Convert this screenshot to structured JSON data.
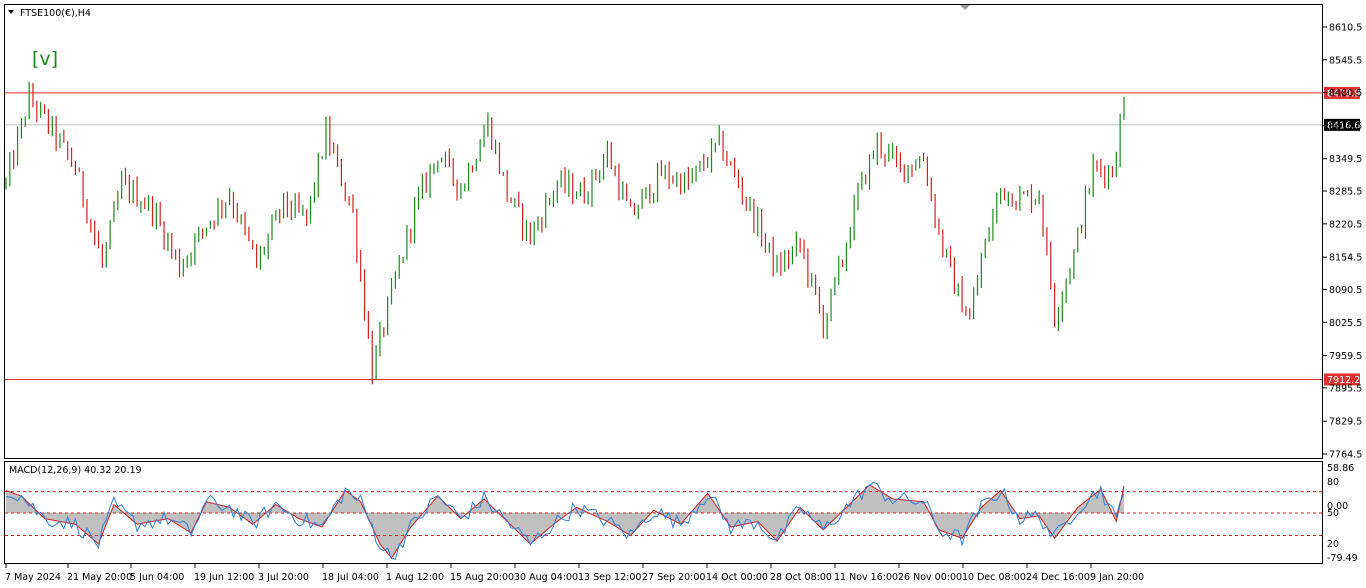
{
  "header": {
    "symbol_label": "FTSE100(€),H4",
    "wave_label": "[v]"
  },
  "colors": {
    "bull": "#1a8a1a",
    "bear": "#d42020",
    "level_line": "#e03030",
    "wave_label": "#1a8a1a",
    "macd_line": "#2f7fd8",
    "signal_line": "#d02020",
    "histogram": "#c0c0c0",
    "level_dots": "#d02020"
  },
  "chart_data": [
    {
      "type": "candlestick",
      "title": "FTSE100(€),H4",
      "ylim": [
        7764.5,
        8610.5
      ],
      "yticks": [
        "8610.5",
        "8545.5",
        "8480.5",
        "8415.5",
        "8349.5",
        "8285.5",
        "8220.5",
        "8154.5",
        "8090.5",
        "8025.5",
        "7959.5",
        "7895.5",
        "7829.5",
        "7764.5"
      ],
      "xticks": [
        "7 May 2024",
        "21 May 20:00",
        "5 Jun 04:00",
        "19 Jun 12:00",
        "3 Jul 20:00",
        "18 Jul 04:00",
        "1 Aug 12:00",
        "15 Aug 20:00",
        "30 Aug 04:00",
        "13 Sep 12:00",
        "27 Sep 20:00",
        "14 Oct 00:00",
        "28 Oct 08:00",
        "11 Nov 16:00",
        "26 Nov 00:00",
        "10 Dec 08:00",
        "24 Dec 16:00",
        "9 Jan 20:00"
      ],
      "horizontal_levels": [
        {
          "value": 8479.9,
          "label": "8479.9",
          "color": "#e03030"
        },
        {
          "value": 7912.2,
          "label": "7912.2",
          "color": "#e03030"
        }
      ],
      "current_price": {
        "value": 8416.6,
        "label": "8416.6"
      },
      "anchors": [
        [
          0,
          8300
        ],
        [
          3,
          8385
        ],
        [
          6,
          8470
        ],
        [
          12,
          8405
        ],
        [
          18,
          8330
        ],
        [
          25,
          8140
        ],
        [
          30,
          8300
        ],
        [
          38,
          8250
        ],
        [
          45,
          8135
        ],
        [
          52,
          8220
        ],
        [
          58,
          8280
        ],
        [
          65,
          8140
        ],
        [
          72,
          8260
        ],
        [
          78,
          8230
        ],
        [
          83,
          8400
        ],
        [
          90,
          8240
        ],
        [
          95,
          7930
        ],
        [
          100,
          8080
        ],
        [
          106,
          8250
        ],
        [
          112,
          8360
        ],
        [
          118,
          8290
        ],
        [
          125,
          8420
        ],
        [
          130,
          8280
        ],
        [
          136,
          8195
        ],
        [
          143,
          8300
        ],
        [
          150,
          8280
        ],
        [
          156,
          8360
        ],
        [
          162,
          8235
        ],
        [
          170,
          8320
        ],
        [
          177,
          8300
        ],
        [
          185,
          8380
        ],
        [
          193,
          8250
        ],
        [
          200,
          8130
        ],
        [
          206,
          8180
        ],
        [
          212,
          8020
        ],
        [
          217,
          8150
        ],
        [
          221,
          8280
        ],
        [
          226,
          8380
        ],
        [
          232,
          8330
        ],
        [
          238,
          8350
        ],
        [
          242,
          8200
        ],
        [
          246,
          8100
        ],
        [
          250,
          8030
        ],
        [
          253,
          8150
        ],
        [
          258,
          8290
        ],
        [
          263,
          8270
        ],
        [
          268,
          8280
        ],
        [
          272,
          8040
        ],
        [
          277,
          8160
        ],
        [
          282,
          8330
        ],
        [
          287,
          8325
        ],
        [
          290,
          8460
        ]
      ]
    },
    {
      "type": "macd",
      "title": "MACD(12,26,9) 40.32 20.19",
      "label": "MACD(12,26,9)",
      "macd_value": "40.32",
      "signal_value": "20.19",
      "ylim": [
        -79.49,
        58.86
      ],
      "scale_labels": [
        "58.86",
        "80",
        "0.00",
        "50",
        "20",
        "-79.49"
      ],
      "dotted_levels": [
        38,
        0,
        -40
      ],
      "anchors": [
        [
          0,
          40
        ],
        [
          4,
          30
        ],
        [
          10,
          -10
        ],
        [
          18,
          -20
        ],
        [
          24,
          -55
        ],
        [
          28,
          15
        ],
        [
          34,
          -20
        ],
        [
          42,
          -10
        ],
        [
          48,
          -35
        ],
        [
          52,
          20
        ],
        [
          58,
          10
        ],
        [
          64,
          -20
        ],
        [
          70,
          15
        ],
        [
          76,
          -10
        ],
        [
          82,
          -25
        ],
        [
          88,
          40
        ],
        [
          92,
          20
        ],
        [
          97,
          -55
        ],
        [
          100,
          -80
        ],
        [
          105,
          -25
        ],
        [
          112,
          30
        ],
        [
          118,
          -10
        ],
        [
          124,
          25
        ],
        [
          130,
          -15
        ],
        [
          136,
          -55
        ],
        [
          142,
          -20
        ],
        [
          148,
          10
        ],
        [
          156,
          -15
        ],
        [
          162,
          -40
        ],
        [
          168,
          5
        ],
        [
          175,
          -20
        ],
        [
          182,
          35
        ],
        [
          188,
          -25
        ],
        [
          195,
          -15
        ],
        [
          200,
          -50
        ],
        [
          206,
          10
        ],
        [
          212,
          -30
        ],
        [
          218,
          10
        ],
        [
          224,
          50
        ],
        [
          230,
          25
        ],
        [
          238,
          20
        ],
        [
          242,
          -30
        ],
        [
          248,
          -45
        ],
        [
          253,
          10
        ],
        [
          258,
          40
        ],
        [
          263,
          -10
        ],
        [
          268,
          -5
        ],
        [
          272,
          -45
        ],
        [
          278,
          10
        ],
        [
          284,
          42
        ],
        [
          288,
          -15
        ],
        [
          290,
          48
        ]
      ]
    }
  ]
}
